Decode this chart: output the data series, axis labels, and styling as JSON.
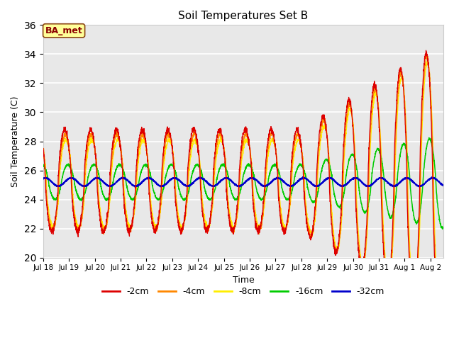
{
  "title": "Soil Temperatures Set B",
  "xlabel": "Time",
  "ylabel": "Soil Temperature (C)",
  "ylim": [
    20,
    36
  ],
  "yticks": [
    20,
    22,
    24,
    26,
    28,
    30,
    32,
    34,
    36
  ],
  "bg_color": "#e8e8e8",
  "annotation_text": "BA_met",
  "annotation_bg": "#ffff99",
  "annotation_fg": "#8B0000",
  "annotation_border": "#8B4513",
  "line_colors": {
    "-2cm": "#dd0000",
    "-4cm": "#ff8800",
    "-8cm": "#ffee00",
    "-16cm": "#00cc00",
    "-32cm": "#0000cc"
  },
  "n_days": 15.5,
  "grid_color": "#ffffff",
  "spine_color": "#cccccc",
  "fig_bg": "#ffffff"
}
